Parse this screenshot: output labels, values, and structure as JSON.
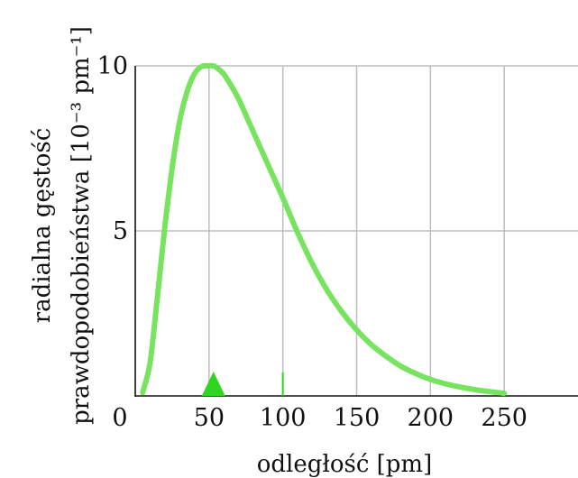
{
  "chart_data": {
    "type": "line",
    "xlabel": "odległość [pm]",
    "ylabel_line1": "radialna gęstość",
    "ylabel_line2": "prawdopodobieństwa [10⁻³ pm⁻¹]",
    "x_ticks": [
      0,
      50,
      100,
      150,
      200,
      250
    ],
    "y_ticks": [
      10,
      5
    ],
    "xlim": [
      0,
      300
    ],
    "ylim": [
      0,
      10
    ],
    "grid": true,
    "curve_color": "#77e35e",
    "marker_color": "#2fd61f",
    "peak_marker_x": 53,
    "series": [
      {
        "x": [
          5,
          10,
          15,
          20,
          25,
          30,
          35,
          40,
          45,
          50,
          53,
          55,
          60,
          65,
          70,
          75,
          80,
          90,
          100,
          110,
          120,
          130,
          140,
          150,
          160,
          170,
          180,
          190,
          200,
          210,
          220,
          230,
          240,
          250
        ],
        "y": [
          0.1,
          1.0,
          3.0,
          5.1,
          6.9,
          8.3,
          9.2,
          9.75,
          9.98,
          10.0,
          10.0,
          9.95,
          9.75,
          9.4,
          9.0,
          8.5,
          8.0,
          7.0,
          6.0,
          4.95,
          4.0,
          3.2,
          2.55,
          2.0,
          1.55,
          1.2,
          0.9,
          0.68,
          0.5,
          0.37,
          0.27,
          0.19,
          0.13,
          0.08
        ]
      }
    ]
  }
}
